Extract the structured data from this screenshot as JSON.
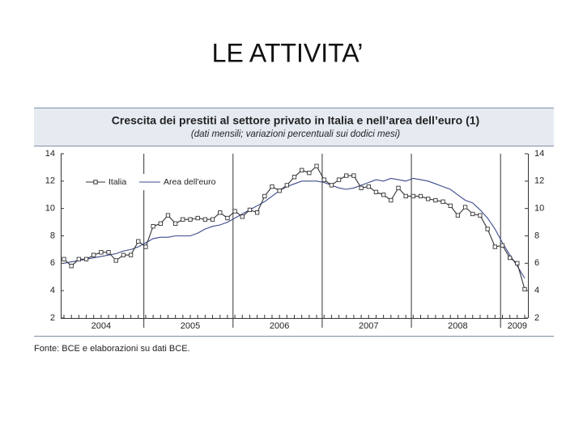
{
  "slide_title": "LE ATTIVITA’",
  "source": "Fonte: BCE e elaborazioni su dati BCE.",
  "chart_data": {
    "type": "line",
    "title": "Crescita dei prestiti al settore privato in Italia e nell’area dell’euro (1)",
    "subtitle": "(dati mensili; variazioni percentuali sui dodici mesi)",
    "categories": [
      null,
      null,
      null,
      null,
      null,
      "2004",
      null,
      null,
      null,
      null,
      null,
      null,
      null,
      null,
      null,
      null,
      null,
      "2005",
      null,
      null,
      null,
      null,
      null,
      null,
      null,
      null,
      null,
      null,
      null,
      "2006",
      null,
      null,
      null,
      null,
      null,
      null,
      null,
      null,
      null,
      null,
      null,
      "2007",
      null,
      null,
      null,
      null,
      null,
      null,
      null,
      null,
      null,
      null,
      null,
      "2008",
      null,
      null,
      null,
      null,
      null,
      null,
      null,
      "2009",
      null
    ],
    "series": [
      {
        "name": "Italia",
        "color": "#333333",
        "marker": "square",
        "values": [
          6.3,
          5.8,
          6.3,
          6.3,
          6.6,
          6.8,
          6.8,
          6.2,
          6.6,
          6.6,
          7.6,
          7.2,
          8.7,
          8.9,
          9.5,
          8.9,
          9.2,
          9.2,
          9.3,
          9.2,
          9.2,
          9.7,
          9.3,
          9.8,
          9.4,
          9.9,
          9.7,
          10.9,
          11.6,
          11.3,
          11.7,
          12.3,
          12.8,
          12.6,
          13.1,
          12.1,
          11.7,
          12.1,
          12.4,
          12.4,
          11.5,
          11.6,
          11.2,
          11.0,
          10.6,
          11.5,
          10.9,
          10.9,
          10.9,
          10.7,
          10.6,
          10.5,
          10.2,
          9.5,
          10.1,
          9.6,
          9.5,
          8.5,
          7.2,
          7.3,
          6.4,
          6.0,
          4.1
        ]
      },
      {
        "name": "Area dell'euro",
        "color": "#3b4a8c",
        "values": [
          6.0,
          6.1,
          6.2,
          6.3,
          6.4,
          6.5,
          6.6,
          6.7,
          6.9,
          7.0,
          7.2,
          7.5,
          7.8,
          7.9,
          7.9,
          8.0,
          8.0,
          8.0,
          8.2,
          8.5,
          8.7,
          8.8,
          9.0,
          9.3,
          9.6,
          9.9,
          10.2,
          10.5,
          10.9,
          11.3,
          11.6,
          11.8,
          12.0,
          12.0,
          12.0,
          11.9,
          11.7,
          11.5,
          11.4,
          11.5,
          11.7,
          11.9,
          12.1,
          12.0,
          12.2,
          12.1,
          12.0,
          12.2,
          12.1,
          12.0,
          11.8,
          11.6,
          11.4,
          11.0,
          10.6,
          10.4,
          9.9,
          9.3,
          8.5,
          7.5,
          6.6,
          5.8,
          4.9
        ]
      }
    ],
    "ylim": [
      2,
      14
    ],
    "yticks": [
      2,
      4,
      6,
      8,
      10,
      12,
      14
    ],
    "grid": false
  }
}
